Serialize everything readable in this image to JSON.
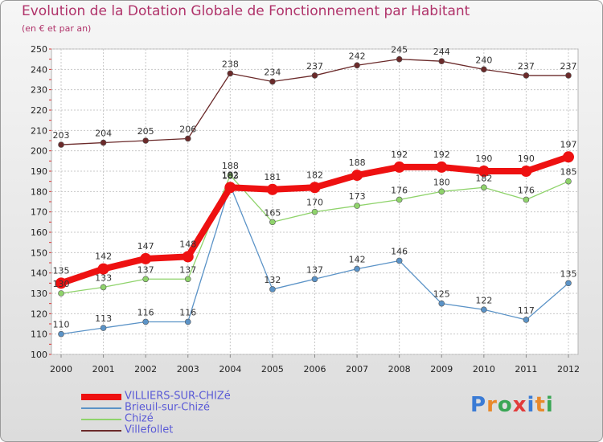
{
  "header": {
    "title": "Evolution de la Dotation Globale de Fonctionnement par Habitant",
    "subtitle": "(en € et par an)"
  },
  "logo": {
    "letters": [
      "P",
      "r",
      "o",
      "x",
      "i",
      "t",
      "i"
    ],
    "colors": [
      "#3a7bd5",
      "#e8892b",
      "#3aa655",
      "#e23b3b",
      "#3a7bd5",
      "#e8892b",
      "#3aa655"
    ]
  },
  "chart_data": {
    "type": "line",
    "title": "Evolution de la Dotation Globale de Fonctionnement par Habitant",
    "subtitle": "(en € et par an)",
    "xlabel": "",
    "ylabel": "",
    "x": [
      "2000",
      "2001",
      "2002",
      "2003",
      "2004",
      "2005",
      "2006",
      "2007",
      "2008",
      "2009",
      "2010",
      "2011",
      "2012"
    ],
    "ylim": [
      100,
      250
    ],
    "yticks": [
      100,
      110,
      120,
      130,
      140,
      150,
      160,
      170,
      180,
      190,
      200,
      210,
      220,
      230,
      240,
      250
    ],
    "grid": true,
    "legend_position": "bottom-left",
    "series": [
      {
        "name": "VILLIERS-SUR-CHIZé",
        "color": "#ee1111",
        "values": [
          135,
          142,
          147,
          148,
          182,
          181,
          182,
          188,
          192,
          192,
          190,
          190,
          197
        ]
      },
      {
        "name": "Brieuil-sur-Chizé",
        "color": "#5b93c7",
        "values": [
          110,
          113,
          116,
          116,
          183,
          132,
          137,
          142,
          146,
          125,
          122,
          117,
          135
        ]
      },
      {
        "name": "Chizé",
        "color": "#8fd36b",
        "values": [
          130,
          133,
          137,
          137,
          188,
          165,
          170,
          173,
          176,
          180,
          182,
          176,
          185
        ]
      },
      {
        "name": "Villefollet",
        "color": "#6b2a2a",
        "values": [
          203,
          204,
          205,
          206,
          238,
          234,
          237,
          242,
          245,
          244,
          240,
          237,
          237
        ]
      }
    ]
  }
}
